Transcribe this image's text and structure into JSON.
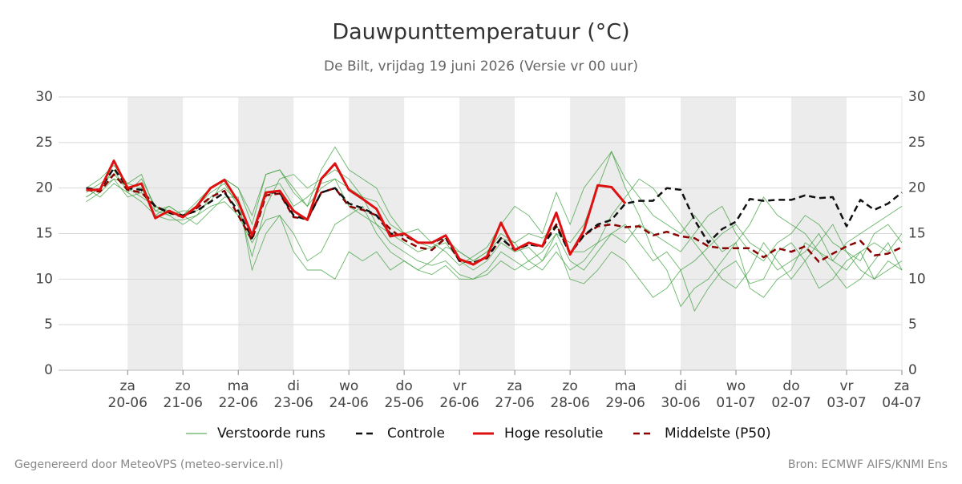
{
  "chart_data": {
    "type": "line",
    "title": "Dauwpunttemperatuur (°C)",
    "subtitle": "De Bilt, vrijdag 19 juni 2026 (Versie vr 00 uur)",
    "x": [
      19.25,
      19.5,
      19.75,
      20,
      20.25,
      20.5,
      20.75,
      21,
      21.25,
      21.5,
      21.75,
      22,
      22.25,
      22.5,
      22.75,
      23,
      23.25,
      23.5,
      23.75,
      24,
      24.25,
      24.5,
      24.75,
      25,
      25.25,
      25.5,
      25.75,
      26,
      26.25,
      26.5,
      26.75,
      27,
      27.25,
      27.5,
      27.75,
      28,
      28.25,
      28.5,
      28.75,
      29,
      29.25,
      29.5,
      29.75,
      30,
      30.25,
      30.5,
      30.75,
      31,
      31.25,
      31.5,
      31.75,
      32,
      32.25,
      32.5,
      32.75,
      33,
      33.25,
      33.5,
      33.75,
      34
    ],
    "xlim": [
      18.75,
      34
    ],
    "xticks": [
      {
        "value": 20,
        "label": [
          "za",
          "20-06"
        ]
      },
      {
        "value": 21,
        "label": [
          "zo",
          "21-06"
        ]
      },
      {
        "value": 22,
        "label": [
          "ma",
          "22-06"
        ]
      },
      {
        "value": 23,
        "label": [
          "di",
          "23-06"
        ]
      },
      {
        "value": 24,
        "label": [
          "wo",
          "24-06"
        ]
      },
      {
        "value": 25,
        "label": [
          "do",
          "25-06"
        ]
      },
      {
        "value": 26,
        "label": [
          "vr",
          "26-06"
        ]
      },
      {
        "value": 27,
        "label": [
          "za",
          "27-06"
        ]
      },
      {
        "value": 28,
        "label": [
          "zo",
          "28-06"
        ]
      },
      {
        "value": 29,
        "label": [
          "ma",
          "29-06"
        ]
      },
      {
        "value": 30,
        "label": [
          "di",
          "30-06"
        ]
      },
      {
        "value": 31,
        "label": [
          "wo",
          "01-07"
        ]
      },
      {
        "value": 32,
        "label": [
          "do",
          "02-07"
        ]
      },
      {
        "value": 33,
        "label": [
          "vr",
          "03-07"
        ]
      },
      {
        "value": 34,
        "label": [
          "za",
          "04-07"
        ]
      }
    ],
    "ylim": [
      0,
      30
    ],
    "yticks": [
      0,
      5,
      10,
      15,
      20,
      25,
      30
    ],
    "grid": true,
    "ensemble": {
      "name": "Verstoorde runs",
      "color": "#3a9d3a",
      "runs": [
        [
          19.5,
          20.5,
          21.5,
          20,
          19,
          18,
          17.5,
          17,
          18,
          19.5,
          20.5,
          18,
          12.5,
          18,
          21,
          21.5,
          20,
          21,
          22,
          21,
          19,
          16,
          14,
          13,
          12,
          11.5,
          12,
          10.5,
          10,
          11,
          13,
          12,
          11,
          12,
          14,
          10,
          9.5,
          11,
          13,
          12,
          10,
          8,
          9,
          11,
          6.5,
          9,
          11,
          12,
          9.5,
          10,
          13,
          14,
          12,
          9,
          10,
          12,
          13,
          10,
          11,
          12
        ],
        [
          19,
          20,
          22,
          19.5,
          21,
          18,
          17,
          17.5,
          17.5,
          18.5,
          21,
          20,
          16,
          21.5,
          22,
          20,
          18,
          22,
          24.5,
          22,
          21,
          20,
          17,
          15,
          15.5,
          14,
          13,
          11.5,
          12.5,
          13.5,
          16,
          18,
          17,
          15,
          19.5,
          16,
          20,
          22,
          24,
          21,
          19,
          17,
          16,
          15,
          17,
          15,
          13,
          14,
          16,
          19,
          17,
          16,
          15,
          13,
          12,
          14,
          15,
          16,
          17,
          18
        ],
        [
          20,
          19,
          20.5,
          19.5,
          18.5,
          17,
          16.5,
          16.5,
          17,
          18,
          18.5,
          17,
          14,
          16.5,
          17,
          15,
          12,
          13,
          16,
          17,
          18,
          15,
          13,
          12,
          11,
          10.5,
          11.5,
          10,
          10,
          10.5,
          12,
          11,
          12,
          11,
          13,
          11,
          12,
          14,
          17,
          19,
          21,
          20,
          18,
          16,
          14,
          12,
          10,
          9,
          11,
          14,
          12,
          10,
          12,
          14,
          16,
          13,
          11,
          10,
          12,
          11
        ],
        [
          18.5,
          19.5,
          21,
          20.5,
          21.5,
          17.5,
          18,
          17,
          16,
          17.5,
          19,
          19,
          11,
          15,
          17,
          13,
          11,
          11,
          10,
          13,
          12,
          13,
          11,
          12,
          11,
          12,
          13.5,
          13,
          12,
          13,
          14.5,
          14,
          12,
          13,
          15,
          14,
          16,
          20,
          24,
          20,
          17,
          13,
          11,
          7,
          9,
          10,
          12,
          14,
          9,
          8,
          10,
          11,
          14,
          13,
          11,
          9,
          10,
          12,
          14,
          11
        ],
        [
          20,
          21,
          22.5,
          20.5,
          20,
          17,
          18,
          17,
          18.5,
          20,
          21,
          20,
          17,
          21.5,
          22,
          19.5,
          18,
          20,
          21,
          20,
          19,
          18.5,
          16,
          15,
          14,
          13.5,
          14.5,
          13,
          12,
          13,
          15,
          14,
          15,
          14.5,
          16,
          13,
          13,
          14,
          15,
          14,
          16,
          15,
          14,
          13,
          15,
          17,
          18,
          15,
          13,
          12,
          14,
          15,
          17,
          16,
          14,
          13,
          12,
          15,
          16,
          14
        ],
        [
          19,
          20,
          21,
          19,
          19.5,
          17.5,
          17,
          16,
          17,
          19,
          20,
          18.5,
          15,
          20,
          20.5,
          18,
          19,
          20.5,
          21,
          18,
          17,
          16,
          15,
          14,
          13,
          13.5,
          14,
          12,
          11,
          12,
          14,
          13,
          13.5,
          12,
          15,
          12,
          11,
          13,
          15,
          16,
          14,
          12,
          13,
          11,
          12,
          13.5,
          15,
          16,
          14,
          13,
          11,
          12,
          13,
          15,
          12,
          11,
          13,
          14,
          13,
          15
        ]
      ]
    },
    "series": [
      {
        "name": "Controle",
        "color": "#111111",
        "style": "dashed",
        "values": [
          20,
          19.8,
          22.2,
          20,
          19.8,
          18,
          17.3,
          17,
          17.5,
          18.5,
          19.5,
          17.5,
          14.5,
          19.5,
          19.5,
          17,
          16.5,
          19.5,
          20,
          18.3,
          17.8,
          17,
          15,
          14.8,
          14,
          14,
          14.6,
          12,
          11.8,
          12.4,
          14.5,
          13.2,
          13.8,
          13.6,
          15.8,
          12.8,
          14.8,
          16,
          16.5,
          18.3,
          18.6,
          18.6,
          20,
          19.8,
          16.5,
          14,
          15.5,
          16.3,
          18.8,
          18.6,
          18.7,
          18.7,
          19.2,
          18.9,
          19,
          15.8,
          18.7,
          17.6,
          18.3,
          19.5
        ]
      },
      {
        "name": "Hoge resolutie",
        "color": "#dd1111",
        "style": "solid",
        "values": [
          19.8,
          19.8,
          23,
          20,
          20.5,
          16.7,
          17.5,
          16.8,
          18,
          20,
          20.9,
          18.5,
          14.8,
          19.5,
          19.7,
          17.5,
          16.5,
          21,
          22.7,
          19.8,
          18.8,
          17.7,
          14.7,
          15,
          14,
          14,
          14.8,
          12.2,
          11.6,
          12.5,
          16.2,
          13.2,
          14,
          13.6,
          17.3,
          12.7,
          15.3,
          20.3,
          20.1,
          18.3,
          null,
          null,
          null,
          null,
          null,
          null,
          null,
          null,
          null,
          null,
          null,
          null,
          null,
          null,
          null,
          null,
          null,
          null,
          null,
          null
        ]
      },
      {
        "name": "Middelste (P50)",
        "color": "#8b0000",
        "style": "dashed",
        "values": [
          19.8,
          19.6,
          21.5,
          19.8,
          19.5,
          18,
          17.3,
          16.8,
          17.8,
          19,
          19.7,
          17,
          14.3,
          19.2,
          19.4,
          16.8,
          16.6,
          19.5,
          20,
          18,
          17.6,
          17,
          15.5,
          14.3,
          13.5,
          13.2,
          14.5,
          12,
          11.8,
          12.3,
          14.5,
          13.2,
          13.8,
          13.6,
          16,
          12.8,
          14.8,
          15.8,
          16,
          15.7,
          15.8,
          14.8,
          15.2,
          14.7,
          14.5,
          13.6,
          13.4,
          13.4,
          13.4,
          12.4,
          13.4,
          13,
          13.6,
          11.9,
          12.8,
          13.6,
          14.2,
          12.6,
          12.8,
          13.5
        ]
      }
    ]
  },
  "footer_left": "Gegenereerd door MeteoVPS (meteo-service.nl)",
  "footer_right": "Bron: ECMWF AIFS/KNMI Ens"
}
